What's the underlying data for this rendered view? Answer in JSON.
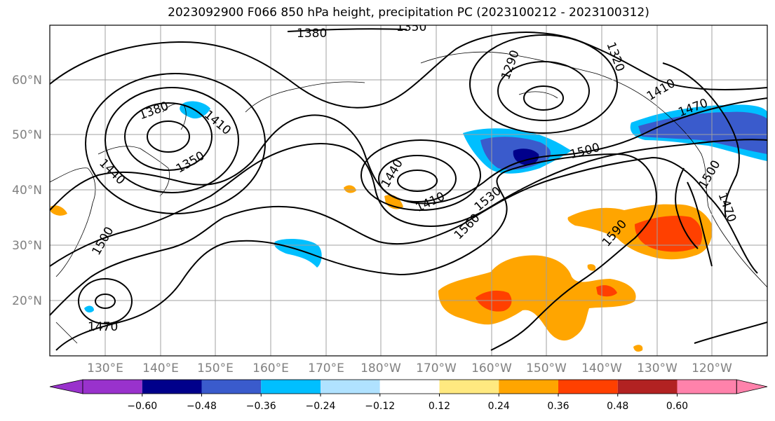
{
  "map": {
    "title": "2023092900 F066 850 hPa height, precipitation PC (2023100212 - 2023100312)",
    "lat_labels": [
      "60°N",
      "50°N",
      "40°N",
      "30°N",
      "20°N"
    ],
    "lon_labels": [
      "130°E",
      "140°E",
      "150°E",
      "160°E",
      "170°E",
      "180°W",
      "170°W",
      "160°W",
      "150°W",
      "140°W",
      "130°W",
      "120°W"
    ],
    "contour_labels": [
      "1380",
      "1350",
      "1290",
      "1320",
      "1410",
      "1470",
      "1380",
      "1410",
      "1350",
      "1440",
      "1440",
      "1410",
      "1500",
      "1530",
      "1560",
      "1590",
      "1500",
      "1470",
      "1500",
      "1470"
    ],
    "colors": {
      "neg_strong": "#9932cc",
      "navy": "#00008b",
      "royal": "#3a5bcc",
      "sky": "#00bfff",
      "pale_blue": "#b0e2ff",
      "white": "#ffffff",
      "pale_yellow": "#ffe980",
      "orange": "#ffa500",
      "orange_red": "#ff4000",
      "firebrick": "#b22222",
      "pink": "#ff82ab"
    }
  },
  "colorbar": {
    "ticks": [
      "−0.60",
      "−0.48",
      "−0.36",
      "−0.24",
      "−0.12",
      "0.12",
      "0.24",
      "0.36",
      "0.48",
      "0.60"
    ]
  }
}
